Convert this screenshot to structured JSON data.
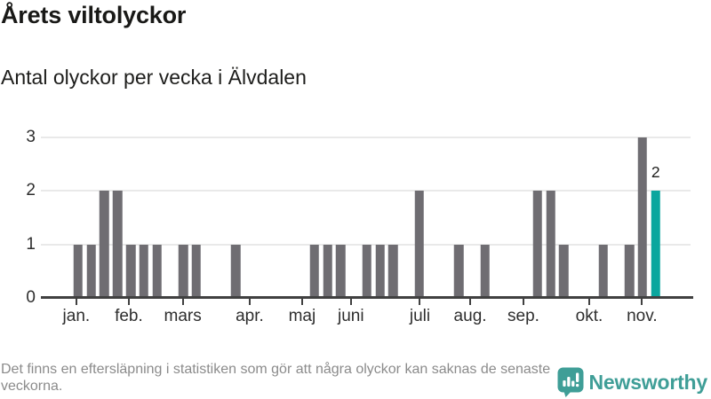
{
  "header": {
    "title": "Årets viltolyckor",
    "subtitle": "Antal olyckor per vecka i Älvdalen"
  },
  "footer": {
    "note": "Det finns en eftersläpning i statistiken som gör att några olyckor kan saknas de senaste veckorna.",
    "brand_name": "Newsworthy",
    "brand_icon": "newsworthy-speech-bubble-bar-chart-icon"
  },
  "colors": {
    "bar": "#6f6d72",
    "highlight": "#0aa69e",
    "brand": "#3f9e97",
    "axis": "#404040",
    "grid": "#e9e9e9",
    "text_dark": "#1d1d1b",
    "text_muted": "#8b8b8b"
  },
  "chart_data": {
    "type": "bar",
    "title": "Årets viltolyckor",
    "subtitle": "Antal olyckor per vecka i Älvdalen",
    "xlabel": "",
    "ylabel": "",
    "unit": "olyckor per vecka",
    "grid": true,
    "ylim": [
      0,
      3.167
    ],
    "y_ticks": [
      0,
      1,
      2,
      3
    ],
    "x_week_domain": [
      -1.84,
      47.66
    ],
    "month_ticks": [
      {
        "label": "jan.",
        "week": 0.86
      },
      {
        "label": "feb.",
        "week": 4.86
      },
      {
        "label": "mars",
        "week": 8.97
      },
      {
        "label": "apr.",
        "week": 14.07
      },
      {
        "label": "maj",
        "week": 18.06
      },
      {
        "label": "juni",
        "week": 21.78
      },
      {
        "label": "juli",
        "week": 27.04
      },
      {
        "label": "aug.",
        "week": 30.87
      },
      {
        "label": "sep.",
        "week": 34.93
      },
      {
        "label": "okt.",
        "week": 39.94
      },
      {
        "label": "nov.",
        "week": 43.96
      }
    ],
    "bars": [
      {
        "week": 1,
        "value": 1
      },
      {
        "week": 2,
        "value": 1
      },
      {
        "week": 3,
        "value": 2
      },
      {
        "week": 4,
        "value": 2
      },
      {
        "week": 5,
        "value": 1
      },
      {
        "week": 6,
        "value": 1
      },
      {
        "week": 7,
        "value": 1
      },
      {
        "week": 9,
        "value": 1
      },
      {
        "week": 10,
        "value": 1
      },
      {
        "week": 13,
        "value": 1
      },
      {
        "week": 19,
        "value": 1
      },
      {
        "week": 20,
        "value": 1
      },
      {
        "week": 21,
        "value": 1
      },
      {
        "week": 23,
        "value": 1
      },
      {
        "week": 24,
        "value": 1
      },
      {
        "week": 25,
        "value": 1
      },
      {
        "week": 27,
        "value": 2
      },
      {
        "week": 30,
        "value": 1
      },
      {
        "week": 32,
        "value": 1
      },
      {
        "week": 36,
        "value": 2
      },
      {
        "week": 37,
        "value": 2
      },
      {
        "week": 38,
        "value": 1
      },
      {
        "week": 41,
        "value": 1
      },
      {
        "week": 43,
        "value": 1
      },
      {
        "week": 44,
        "value": 3
      },
      {
        "week": 45,
        "value": 2,
        "highlight": true,
        "label": "2"
      }
    ]
  }
}
